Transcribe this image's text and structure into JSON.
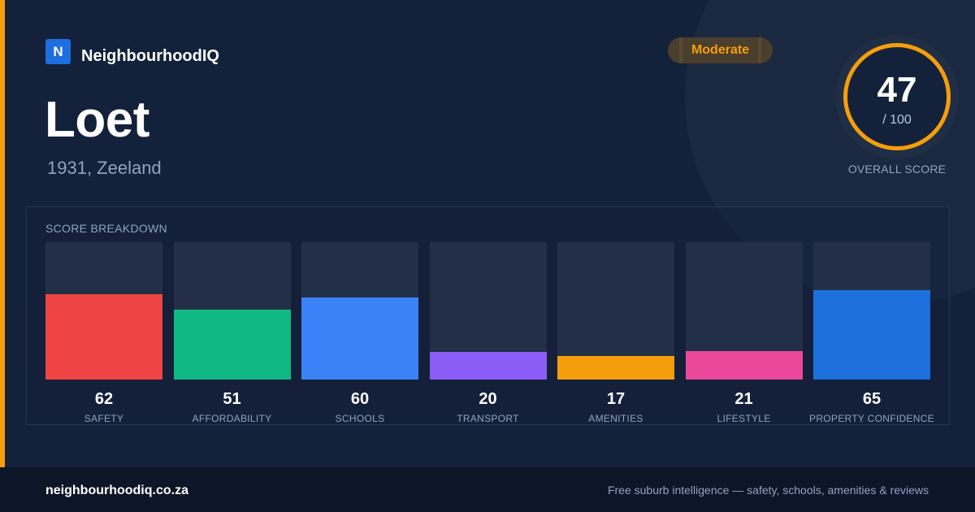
{
  "brand": {
    "logo_letter": "N",
    "name": "NeighbourhoodIQ"
  },
  "suburb": {
    "name": "Loet",
    "location": "1931, Zeeland"
  },
  "rating_badge": {
    "label": "Moderate",
    "color": "#f59e0b"
  },
  "overall": {
    "score": "47",
    "max": "/ 100",
    "label": "OVERALL SCORE"
  },
  "breakdown": {
    "title": "SCORE BREAKDOWN",
    "items": [
      {
        "label": "SAFETY",
        "value": 62,
        "color": "#ef4444"
      },
      {
        "label": "AFFORDABILITY",
        "value": 51,
        "color": "#10b981"
      },
      {
        "label": "SCHOOLS",
        "value": 60,
        "color": "#3b82f6"
      },
      {
        "label": "TRANSPORT",
        "value": 20,
        "color": "#8b5cf6"
      },
      {
        "label": "AMENITIES",
        "value": 17,
        "color": "#f59e0b"
      },
      {
        "label": "LIFESTYLE",
        "value": 21,
        "color": "#ec4899"
      },
      {
        "label": "PROPERTY CONFIDENCE",
        "value": 65,
        "color": "#1d6fdc"
      }
    ]
  },
  "footer": {
    "url": "neighbourhoodiq.co.za",
    "tagline": "Free suburb intelligence — safety, schools, amenities & reviews"
  }
}
